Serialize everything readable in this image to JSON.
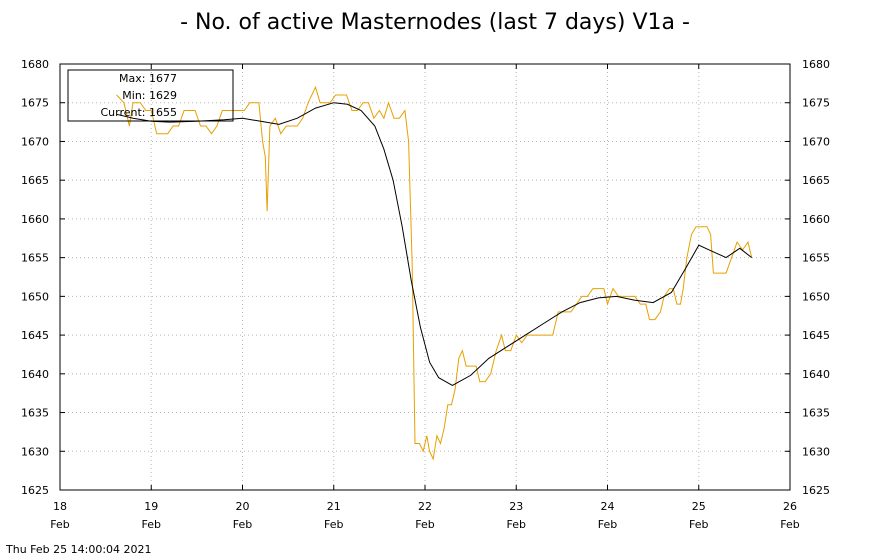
{
  "chart_data": {
    "type": "line",
    "title": "- No. of active Masternodes (last 7 days) V1a -",
    "xlabel": "",
    "ylabel": "",
    "xlim": [
      18,
      26
    ],
    "ylim": [
      1625,
      1680
    ],
    "yticks": [
      1625,
      1630,
      1635,
      1640,
      1645,
      1650,
      1655,
      1660,
      1665,
      1670,
      1675,
      1680
    ],
    "xticks": [
      {
        "value": 18,
        "day": "18",
        "month": "Feb"
      },
      {
        "value": 19,
        "day": "19",
        "month": "Feb"
      },
      {
        "value": 20,
        "day": "20",
        "month": "Feb"
      },
      {
        "value": 21,
        "day": "21",
        "month": "Feb"
      },
      {
        "value": 22,
        "day": "22",
        "month": "Feb"
      },
      {
        "value": 23,
        "day": "23",
        "month": "Feb"
      },
      {
        "value": 24,
        "day": "24",
        "month": "Feb"
      },
      {
        "value": 25,
        "day": "25",
        "month": "Feb"
      },
      {
        "value": 26,
        "day": "26",
        "month": "Feb"
      }
    ],
    "grid": true,
    "legend_placement": "top-left",
    "legend": {
      "max": "Max: 1677",
      "min": "Min: 1629",
      "current": "Current: 1655"
    },
    "series": [
      {
        "color": "#e8a000",
        "points": [
          [
            18.62,
            1676
          ],
          [
            18.7,
            1675
          ],
          [
            18.76,
            1672
          ],
          [
            18.8,
            1675
          ],
          [
            18.88,
            1675
          ],
          [
            18.94,
            1674
          ],
          [
            19.0,
            1674
          ],
          [
            19.06,
            1671
          ],
          [
            19.12,
            1671
          ],
          [
            19.18,
            1671
          ],
          [
            19.24,
            1672
          ],
          [
            19.3,
            1672
          ],
          [
            19.36,
            1674
          ],
          [
            19.42,
            1674
          ],
          [
            19.48,
            1674
          ],
          [
            19.54,
            1672
          ],
          [
            19.6,
            1672
          ],
          [
            19.66,
            1671
          ],
          [
            19.72,
            1672
          ],
          [
            19.78,
            1674
          ],
          [
            19.84,
            1674
          ],
          [
            19.9,
            1674
          ],
          [
            19.96,
            1674
          ],
          [
            20.02,
            1674
          ],
          [
            20.08,
            1675
          ],
          [
            20.14,
            1675
          ],
          [
            20.18,
            1675
          ],
          [
            20.22,
            1670
          ],
          [
            20.25,
            1668
          ],
          [
            20.27,
            1661
          ],
          [
            20.3,
            1672
          ],
          [
            20.36,
            1673
          ],
          [
            20.42,
            1671
          ],
          [
            20.48,
            1672
          ],
          [
            20.54,
            1672
          ],
          [
            20.6,
            1672
          ],
          [
            20.66,
            1673
          ],
          [
            20.72,
            1675
          ],
          [
            20.8,
            1677
          ],
          [
            20.85,
            1675
          ],
          [
            20.9,
            1675
          ],
          [
            20.96,
            1675
          ],
          [
            21.02,
            1676
          ],
          [
            21.08,
            1676
          ],
          [
            21.14,
            1676
          ],
          [
            21.2,
            1674
          ],
          [
            21.26,
            1674
          ],
          [
            21.32,
            1675
          ],
          [
            21.38,
            1675
          ],
          [
            21.44,
            1673
          ],
          [
            21.5,
            1674
          ],
          [
            21.55,
            1673
          ],
          [
            21.6,
            1675
          ],
          [
            21.66,
            1673
          ],
          [
            21.72,
            1673
          ],
          [
            21.78,
            1674
          ],
          [
            21.82,
            1670
          ],
          [
            21.86,
            1654
          ],
          [
            21.89,
            1631
          ],
          [
            21.94,
            1631
          ],
          [
            21.98,
            1630
          ],
          [
            22.02,
            1632
          ],
          [
            22.05,
            1630
          ],
          [
            22.09,
            1629
          ],
          [
            22.13,
            1632
          ],
          [
            22.17,
            1631
          ],
          [
            22.21,
            1633
          ],
          [
            22.25,
            1636
          ],
          [
            22.29,
            1636
          ],
          [
            22.33,
            1638
          ],
          [
            22.37,
            1642
          ],
          [
            22.41,
            1643
          ],
          [
            22.45,
            1641
          ],
          [
            22.51,
            1641
          ],
          [
            22.56,
            1641
          ],
          [
            22.6,
            1639
          ],
          [
            22.66,
            1639
          ],
          [
            22.72,
            1640
          ],
          [
            22.78,
            1643
          ],
          [
            22.84,
            1645
          ],
          [
            22.88,
            1643
          ],
          [
            22.94,
            1643
          ],
          [
            23.0,
            1645
          ],
          [
            23.06,
            1644
          ],
          [
            23.12,
            1645
          ],
          [
            23.2,
            1645
          ],
          [
            23.3,
            1645
          ],
          [
            23.4,
            1645
          ],
          [
            23.46,
            1648
          ],
          [
            23.52,
            1648
          ],
          [
            23.6,
            1648
          ],
          [
            23.66,
            1649
          ],
          [
            23.72,
            1650
          ],
          [
            23.78,
            1650
          ],
          [
            23.84,
            1651
          ],
          [
            23.9,
            1651
          ],
          [
            23.96,
            1651
          ],
          [
            24.0,
            1649
          ],
          [
            24.06,
            1651
          ],
          [
            24.12,
            1650
          ],
          [
            24.18,
            1650
          ],
          [
            24.24,
            1650
          ],
          [
            24.3,
            1650
          ],
          [
            24.36,
            1649
          ],
          [
            24.42,
            1649
          ],
          [
            24.46,
            1647
          ],
          [
            24.52,
            1647
          ],
          [
            24.58,
            1648
          ],
          [
            24.62,
            1650
          ],
          [
            24.68,
            1651
          ],
          [
            24.72,
            1651
          ],
          [
            24.76,
            1649
          ],
          [
            24.8,
            1649
          ],
          [
            24.83,
            1651
          ],
          [
            24.87,
            1655
          ],
          [
            24.92,
            1658
          ],
          [
            24.97,
            1659
          ],
          [
            25.03,
            1659
          ],
          [
            25.09,
            1659
          ],
          [
            25.13,
            1658
          ],
          [
            25.16,
            1653
          ],
          [
            25.22,
            1653
          ],
          [
            25.3,
            1653
          ],
          [
            25.36,
            1655
          ],
          [
            25.42,
            1657
          ],
          [
            25.48,
            1656
          ],
          [
            25.54,
            1657
          ],
          [
            25.58,
            1655
          ]
        ]
      },
      {
        "color": "#000000",
        "points": [
          [
            18.62,
            1673.5
          ],
          [
            18.8,
            1673
          ],
          [
            19.0,
            1672.6
          ],
          [
            19.2,
            1672.5
          ],
          [
            19.5,
            1672.6
          ],
          [
            19.8,
            1672.8
          ],
          [
            20.0,
            1673.0
          ],
          [
            20.2,
            1672.6
          ],
          [
            20.4,
            1672.2
          ],
          [
            20.6,
            1673
          ],
          [
            20.8,
            1674.3
          ],
          [
            21.0,
            1675
          ],
          [
            21.15,
            1674.8
          ],
          [
            21.3,
            1674.0
          ],
          [
            21.45,
            1672
          ],
          [
            21.55,
            1669
          ],
          [
            21.65,
            1665
          ],
          [
            21.75,
            1659
          ],
          [
            21.85,
            1652
          ],
          [
            21.95,
            1646
          ],
          [
            22.05,
            1641.5
          ],
          [
            22.15,
            1639.5
          ],
          [
            22.3,
            1638.5
          ],
          [
            22.5,
            1639.8
          ],
          [
            22.7,
            1642
          ],
          [
            22.9,
            1643.5
          ],
          [
            23.1,
            1645
          ],
          [
            23.3,
            1646.5
          ],
          [
            23.5,
            1648
          ],
          [
            23.7,
            1649.2
          ],
          [
            23.9,
            1649.8
          ],
          [
            24.1,
            1650
          ],
          [
            24.3,
            1649.5
          ],
          [
            24.5,
            1649.2
          ],
          [
            24.7,
            1650.5
          ],
          [
            24.85,
            1653.5
          ],
          [
            25.0,
            1656.6
          ],
          [
            25.15,
            1655.8
          ],
          [
            25.3,
            1655
          ],
          [
            25.45,
            1656.2
          ],
          [
            25.58,
            1655
          ]
        ]
      }
    ]
  },
  "footer": {
    "timestamp": "Thu Feb 25 14:00:04 2021"
  }
}
